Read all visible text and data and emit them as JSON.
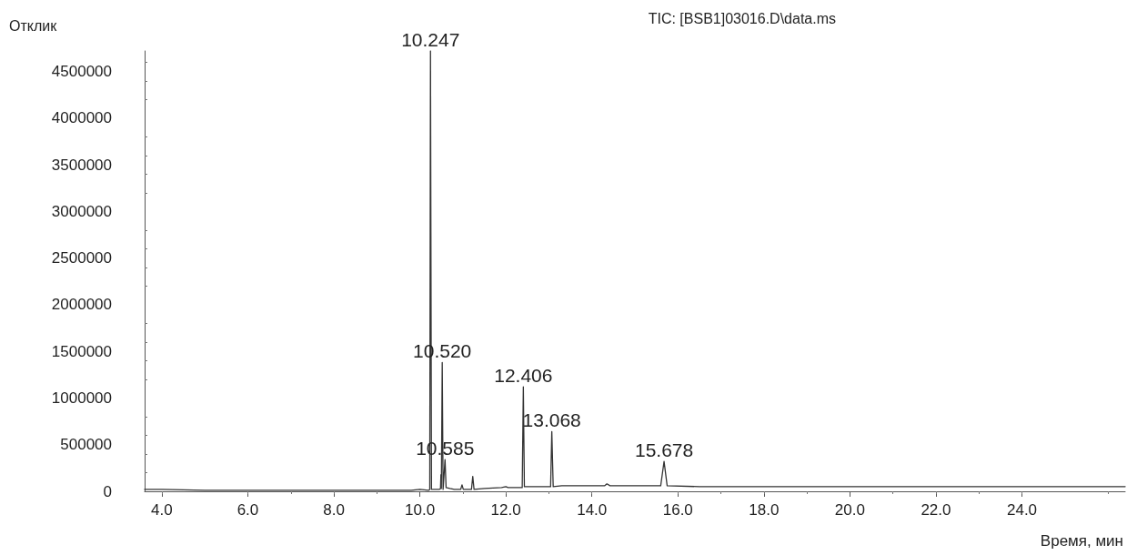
{
  "chart_data": {
    "type": "line",
    "title": "TIC: [BSB1]03016.D\\data.ms",
    "xlabel": "Время, мин",
    "ylabel": "Отклик",
    "xlim": [
      3.6,
      26.4
    ],
    "ylim": [
      0,
      4720000
    ],
    "xticks": [
      {
        "value": 4,
        "label": "4.0"
      },
      {
        "value": 6,
        "label": "6.0"
      },
      {
        "value": 8,
        "label": "8.0"
      },
      {
        "value": 10,
        "label": "10.0"
      },
      {
        "value": 12,
        "label": "12.0"
      },
      {
        "value": 14,
        "label": "14.0"
      },
      {
        "value": 16,
        "label": "16.0"
      },
      {
        "value": 18,
        "label": "18.0"
      },
      {
        "value": 20,
        "label": "20.0"
      },
      {
        "value": 22,
        "label": "22.0"
      },
      {
        "value": 24,
        "label": "24.0"
      }
    ],
    "yticks": [
      0,
      500000,
      1000000,
      1500000,
      2000000,
      2500000,
      3000000,
      3500000,
      4000000,
      4500000
    ],
    "grid": false,
    "marker": "none",
    "line_style": "solid",
    "series": [
      {
        "color": "#333333",
        "x": [
          3.6,
          4.0,
          5.0,
          6.0,
          7.0,
          8.0,
          9.0,
          9.8,
          10.0,
          10.2,
          10.23,
          10.247,
          10.27,
          10.45,
          10.48,
          10.49,
          10.5,
          10.52,
          10.54,
          10.585,
          10.61,
          10.7,
          10.8,
          10.95,
          10.98,
          11.01,
          11.2,
          11.23,
          11.26,
          11.5,
          11.9,
          12.0,
          12.05,
          12.38,
          12.406,
          12.43,
          12.8,
          13.04,
          13.068,
          13.1,
          13.3,
          13.6,
          14.3,
          14.35,
          14.42,
          15.0,
          15.6,
          15.678,
          15.75,
          16.5,
          18.0,
          20.0,
          22.0,
          24.0,
          26.4
        ],
        "values": [
          20000,
          20000,
          10000,
          10000,
          10000,
          10000,
          10000,
          10000,
          20000,
          10000,
          20000,
          4720000,
          20000,
          20000,
          30000,
          180000,
          30000,
          1380000,
          20000,
          340000,
          40000,
          30000,
          20000,
          20000,
          70000,
          20000,
          20000,
          160000,
          20000,
          30000,
          40000,
          50000,
          40000,
          40000,
          1120000,
          50000,
          50000,
          50000,
          640000,
          50000,
          60000,
          60000,
          60000,
          80000,
          60000,
          60000,
          60000,
          320000,
          60000,
          50000,
          50000,
          50000,
          50000,
          50000,
          50000
        ]
      }
    ],
    "annotations": [
      {
        "text": "10.247",
        "x": 10.247,
        "y": 4720000
      },
      {
        "text": "10.520",
        "x": 10.52,
        "y": 1380000
      },
      {
        "text": "10.585",
        "x": 10.585,
        "y": 340000
      },
      {
        "text": "12.406",
        "x": 12.406,
        "y": 1120000
      },
      {
        "text": "13.068",
        "x": 13.068,
        "y": 640000
      },
      {
        "text": "15.678",
        "x": 15.678,
        "y": 320000
      }
    ]
  }
}
